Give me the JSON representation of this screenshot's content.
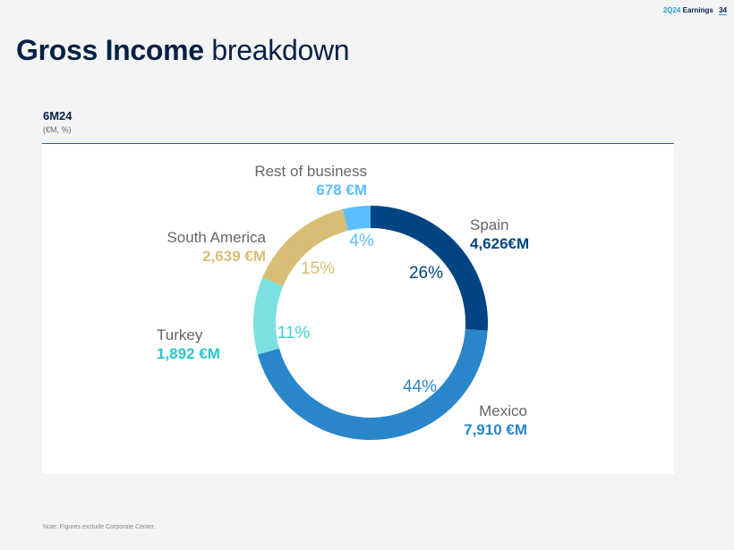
{
  "header": {
    "report": "2Q24",
    "report_suffix": "Earnings",
    "page_number": "34"
  },
  "title": {
    "bold": "Gross Income",
    "rest": "breakdown"
  },
  "period": "6M24",
  "units": "(€M, %)",
  "note": "Note: Figures exclude Corporate Center.",
  "chart_data": {
    "type": "pie",
    "donut": true,
    "title": "",
    "categories": [
      "Spain",
      "Mexico",
      "Turkey",
      "South America",
      "Rest of business"
    ],
    "values": [
      4626,
      7910,
      1892,
      2639,
      678
    ],
    "value_labels": [
      "4,626€M",
      "7,910 €M",
      "1,892 €M",
      "2,639 €M",
      "678 €M"
    ],
    "percent_labels": [
      "26%",
      "44%",
      "11%",
      "15%",
      "4%"
    ],
    "colors": [
      "#004481",
      "#2a86ca",
      "#7ce0e0",
      "#d8be75",
      "#5bbeff"
    ],
    "label_name_color": "#666666"
  }
}
